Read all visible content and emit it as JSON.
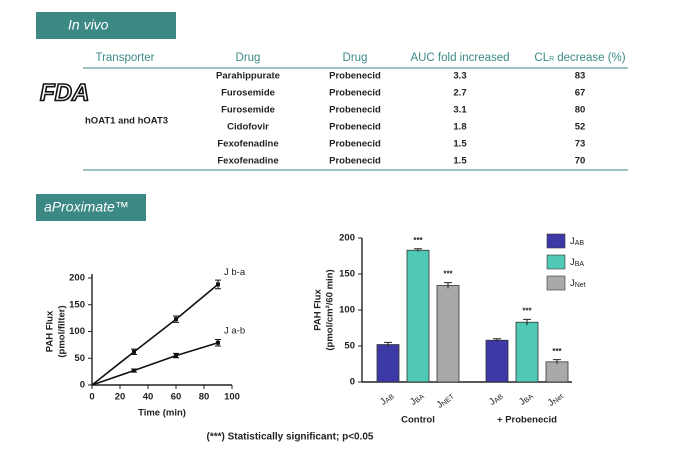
{
  "banners": [
    "In vivo",
    "aProximate™"
  ],
  "logo": "FDA",
  "table": {
    "header": [
      "Transporter",
      "Drug",
      "Drug",
      "AUC fold increased",
      {
        "main": "CL",
        "sub": "R",
        "rest": "decrease (%)"
      }
    ],
    "transporter": "hOAT1 and hOAT3",
    "rows": [
      [
        "Parahippurate",
        "Probenecid",
        3.3,
        83
      ],
      [
        "Furosemide",
        "Probenecid",
        2.7,
        67
      ],
      [
        "Furosemide",
        "Probenecid",
        3.1,
        80
      ],
      [
        "Cidofovir",
        "Probenecid",
        1.8,
        52
      ],
      [
        "Fexofenadine",
        "Probenecid",
        1.5,
        73
      ],
      [
        "Fexofenadine",
        "Probenecid",
        1.5,
        70
      ]
    ]
  },
  "chart_data": [
    {
      "type": "line",
      "x_label": "Time (min)",
      "y_label": [
        "PAH Flux",
        "(pmol/filter)"
      ],
      "x": [
        0,
        30,
        60,
        90
      ],
      "series": [
        {
          "name": "J b-a",
          "color": "#111111",
          "values": [
            0,
            62,
            123,
            188
          ],
          "errors": [
            null,
            5,
            6,
            8
          ]
        },
        {
          "name": "J a-b",
          "color": "#111111",
          "values": [
            0,
            27,
            55,
            79
          ],
          "errors": [
            null,
            3,
            4,
            6
          ]
        }
      ],
      "xlim": [
        0,
        100
      ],
      "xticks": [
        0,
        20,
        40,
        60,
        80,
        100
      ],
      "ylim": [
        0,
        200
      ],
      "yticks": [
        0,
        50,
        100,
        150,
        200
      ]
    },
    {
      "type": "bar",
      "y_label": [
        "PAH Flux",
        "(pmol/cm²/60 min)"
      ],
      "categories": [
        "Control",
        "+ Probenecid"
      ],
      "bar_label_base": "J",
      "bar_label_subs": [
        [
          "AB",
          "BA",
          "NET"
        ],
        [
          "AB",
          "BA",
          "Net"
        ]
      ],
      "series": [
        {
          "name": "J",
          "name_sub": "AB",
          "color": "#3d3aa8",
          "values": [
            52,
            58
          ],
          "errors": [
            3,
            2
          ],
          "significance": [
            null,
            null
          ]
        },
        {
          "name": "J",
          "name_sub": "BA",
          "color": "#4fc9b6",
          "values": [
            183,
            83
          ],
          "errors": [
            2,
            4
          ],
          "significance": [
            "***",
            "***"
          ]
        },
        {
          "name": "J",
          "name_sub": "Net",
          "color": "#a9a9a9",
          "values": [
            134,
            28
          ],
          "errors": [
            4,
            3
          ],
          "significance": [
            "***",
            "***"
          ]
        }
      ],
      "ylim": [
        0,
        200
      ],
      "yticks": [
        0,
        50,
        100,
        150,
        200
      ],
      "legend": "upper-right"
    }
  ],
  "footnote": "(***) Statistically significant; p<0.05"
}
